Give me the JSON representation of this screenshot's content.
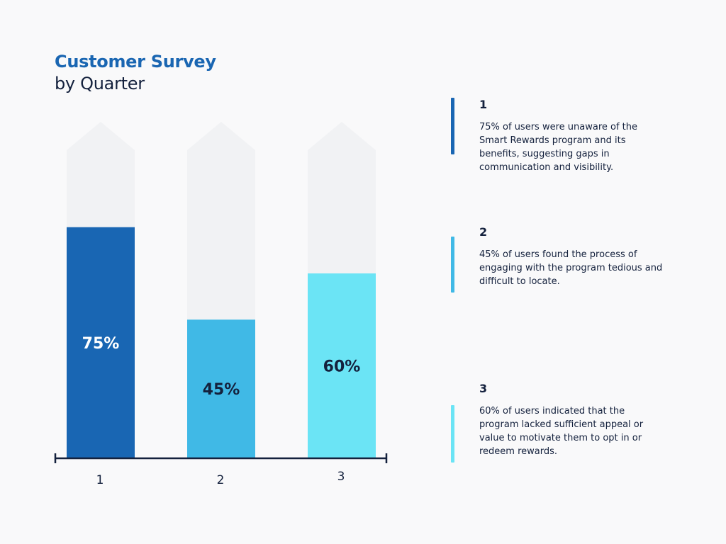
{
  "header": {
    "title": "Customer Survey",
    "subtitle": "by Quarter"
  },
  "colors": {
    "background": "#f9f9fa",
    "track": "#f1f2f4",
    "axis": "#14213d",
    "title": "#1a66b2",
    "text": "#14213d"
  },
  "chart_data": {
    "type": "bar",
    "title": "Customer Survey",
    "subtitle": "by Quarter",
    "categories": [
      "1",
      "2",
      "3"
    ],
    "values": [
      75,
      45,
      60
    ],
    "value_labels": [
      "75%",
      "45%",
      "60%"
    ],
    "colors": [
      "#1966b3",
      "#40b9e6",
      "#6be4f5"
    ],
    "ylim": [
      0,
      100
    ],
    "xlabel": "",
    "ylabel": "",
    "grid": false,
    "legend": "none"
  },
  "notes": [
    {
      "number": "1",
      "text": "75% of users were unaware of the Smart Rewards program and its benefits, suggesting gaps in communication and visibility.",
      "color": "#1966b3"
    },
    {
      "number": "2",
      "text": "45% of users found the process of engaging with the program tedious and difficult to locate.",
      "color": "#40b9e6"
    },
    {
      "number": "3",
      "text": "60% of users indicated that the program lacked sufficient appeal or value to motivate them to opt in or redeem rewards.",
      "color": "#6be4f5"
    }
  ]
}
